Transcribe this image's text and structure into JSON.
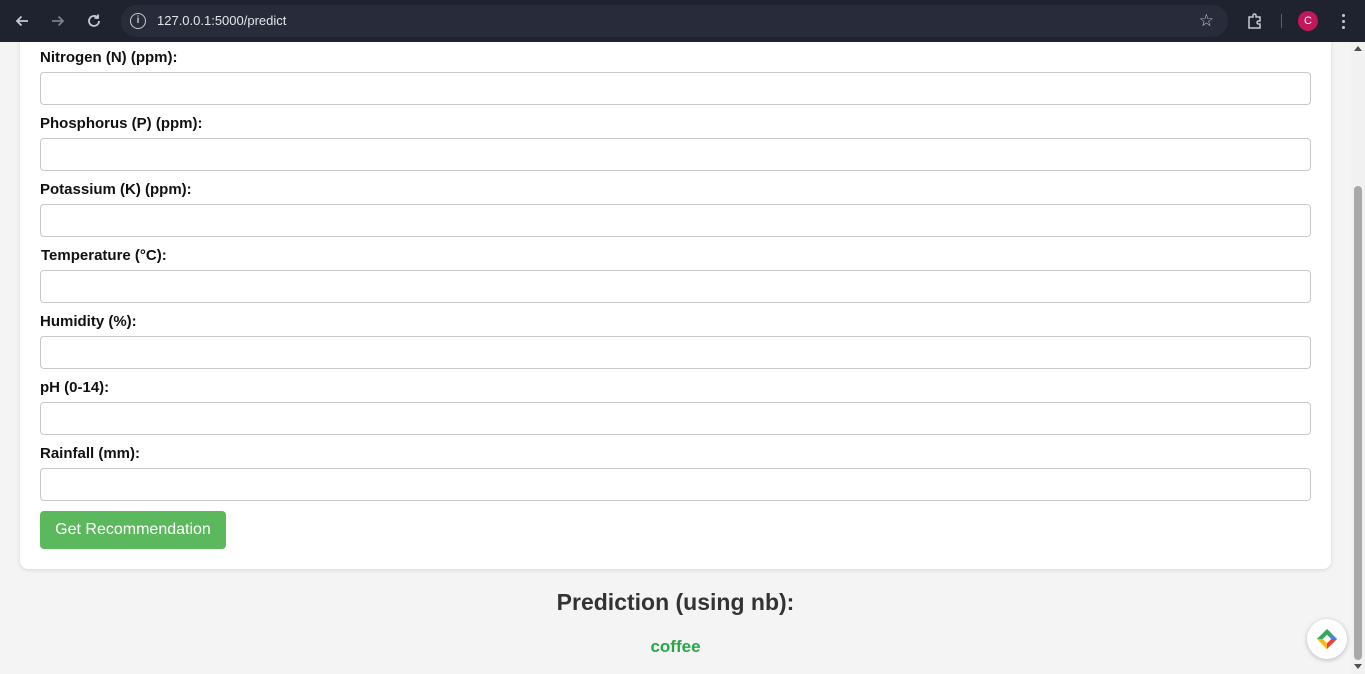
{
  "browser": {
    "url": "127.0.0.1:5000/predict",
    "profile_initial": "C",
    "icons": {
      "back": "arrow-left-icon",
      "forward": "arrow-right-icon",
      "reload": "reload-icon",
      "site_info": "info-icon",
      "bookmark": "star-icon",
      "extensions": "puzzle-icon",
      "menu": "kebab-menu-icon"
    }
  },
  "form": {
    "fields": [
      {
        "label": "Nitrogen (N) (ppm):",
        "value": "",
        "placeholder": ""
      },
      {
        "label": "Phosphorus (P) (ppm):",
        "value": "",
        "placeholder": ""
      },
      {
        "label": "Potassium (K) (ppm):",
        "value": "",
        "placeholder": ""
      },
      {
        "label": "Temperature (°C):",
        "value": "",
        "placeholder": ""
      },
      {
        "label": "Humidity (%):",
        "value": "",
        "placeholder": ""
      },
      {
        "label": "pH (0-14):",
        "value": "",
        "placeholder": ""
      },
      {
        "label": "Rainfall (mm):",
        "value": "",
        "placeholder": ""
      }
    ],
    "submit_label": "Get Recommendation"
  },
  "prediction": {
    "title": "Prediction (using nb):",
    "value": "coffee"
  },
  "colors": {
    "submit_button": "#5cb85c",
    "prediction_value": "#28a745",
    "chrome_background": "#1f2330",
    "avatar": "#c2185b"
  }
}
